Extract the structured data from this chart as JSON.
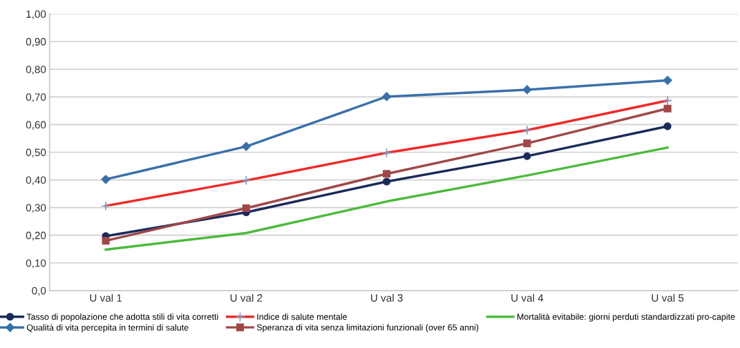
{
  "chart_data": {
    "type": "line",
    "categories": [
      "U val 1",
      "U val 2",
      "U val 3",
      "U val 4",
      "U val 5"
    ],
    "series": [
      {
        "name": "Tasso di popolazione che adotta stili di vita corretti",
        "color": "#1a2a5a",
        "marker": "circle",
        "values": [
          0.197,
          0.283,
          0.394,
          0.486,
          0.594
        ]
      },
      {
        "name": "Indice di salute mentale",
        "color": "#ee2a2a",
        "marker": "cross",
        "values": [
          0.306,
          0.398,
          0.498,
          0.58,
          0.687
        ]
      },
      {
        "name": "Mortalità evitabile: giorni perduti standardizzati pro-capite",
        "color": "#4cba3c",
        "marker": "none",
        "values": [
          0.148,
          0.208,
          0.322,
          0.416,
          0.517
        ]
      },
      {
        "name": "Qualità di vita percepita in termini di salute",
        "color": "#3a70aa",
        "marker": "diamond",
        "values": [
          0.402,
          0.521,
          0.701,
          0.726,
          0.76
        ]
      },
      {
        "name": "Speranza di vita senza limitazioni funzionali (over 65 anni)",
        "color": "#a04848",
        "marker": "square",
        "values": [
          0.18,
          0.298,
          0.422,
          0.532,
          0.658
        ]
      }
    ],
    "ylim": [
      0,
      1.0
    ],
    "yticks": [
      {
        "value": 0,
        "label": "0,0"
      },
      {
        "value": 0.1,
        "label": "0,10"
      },
      {
        "value": 0.2,
        "label": "0,20"
      },
      {
        "value": 0.3,
        "label": "0,30"
      },
      {
        "value": 0.4,
        "label": "0,40"
      },
      {
        "value": 0.5,
        "label": "0,50"
      },
      {
        "value": 0.6,
        "label": "0,60"
      },
      {
        "value": 0.7,
        "label": "0,70"
      },
      {
        "value": 0.8,
        "label": "0,80"
      },
      {
        "value": 0.9,
        "label": "0,90"
      },
      {
        "value": 1.0,
        "label": "1,00"
      }
    ],
    "grid": "y",
    "legend": "bottom"
  }
}
